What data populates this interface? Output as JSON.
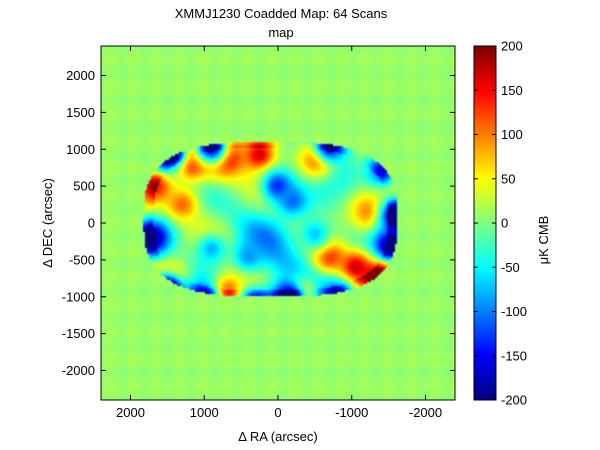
{
  "chart_data": {
    "type": "heatmap",
    "title": "XMMJ1230 Coadded Map: 64 Scans",
    "subtitle": "map",
    "xlabel": "Δ RA (arcsec)",
    "ylabel": "Δ DEC (arcsec)",
    "colorbar_label": "μK CMB",
    "colormap": "jet",
    "grid": false,
    "xlim": [
      2400,
      -2400
    ],
    "ylim": [
      -2400,
      2400
    ],
    "clim": [
      -200,
      200
    ],
    "xticks": [
      {
        "value": 2000,
        "label": "2000"
      },
      {
        "value": 1000,
        "label": "1000"
      },
      {
        "value": 0,
        "label": "0"
      },
      {
        "value": -1000,
        "label": "-1000"
      },
      {
        "value": -2000,
        "label": "-2000"
      }
    ],
    "yticks": [
      {
        "value": 2000,
        "label": "2000"
      },
      {
        "value": 1500,
        "label": "1500"
      },
      {
        "value": 1000,
        "label": "1000"
      },
      {
        "value": 500,
        "label": "500"
      },
      {
        "value": 0,
        "label": "0"
      },
      {
        "value": -500,
        "label": "-500"
      },
      {
        "value": -1000,
        "label": "-1000"
      },
      {
        "value": -1500,
        "label": "-1500"
      },
      {
        "value": -2000,
        "label": "-2000"
      }
    ],
    "colorbar_ticks": [
      {
        "value": 200,
        "label": "200"
      },
      {
        "value": 150,
        "label": "150"
      },
      {
        "value": 100,
        "label": "100"
      },
      {
        "value": 50,
        "label": "50"
      },
      {
        "value": 0,
        "label": "0"
      },
      {
        "value": -50,
        "label": "-50"
      },
      {
        "value": -100,
        "label": "-100"
      },
      {
        "value": -150,
        "label": "-150"
      },
      {
        "value": -200,
        "label": "-200"
      }
    ],
    "background_value": 10,
    "mapped_region": {
      "shape": "rounded-rectangle",
      "center": [
        100,
        50
      ],
      "half_width": 1720,
      "half_height": 1050,
      "inner_value_range": [
        -60,
        60
      ]
    },
    "features": [
      {
        "ra": 1200,
        "dec": 850,
        "value": 200
      },
      {
        "ra": 700,
        "dec": 900,
        "value": 190
      },
      {
        "ra": 250,
        "dec": 920,
        "value": 170
      },
      {
        "ra": -550,
        "dec": 880,
        "value": 160
      },
      {
        "ra": 1650,
        "dec": 500,
        "value": 150
      },
      {
        "ra": -1350,
        "dec": -700,
        "value": 200
      },
      {
        "ra": -1050,
        "dec": -600,
        "value": 180
      },
      {
        "ra": -700,
        "dec": -450,
        "value": 140
      },
      {
        "ra": -300,
        "dec": -950,
        "value": 120
      },
      {
        "ra": 1450,
        "dec": -750,
        "value": 110
      },
      {
        "ra": 700,
        "dec": -950,
        "value": 150
      },
      {
        "ra": -1250,
        "dec": 150,
        "value": 110
      },
      {
        "ra": 1300,
        "dec": 250,
        "value": 110
      },
      {
        "ra": 0,
        "dec": 500,
        "value": -140
      },
      {
        "ra": -200,
        "dec": 300,
        "value": -110
      },
      {
        "ra": 400,
        "dec": -450,
        "value": -90
      },
      {
        "ra": 900,
        "dec": -350,
        "value": -80
      },
      {
        "ra": -500,
        "dec": -150,
        "value": -70
      },
      {
        "ra": 1700,
        "dec": -200,
        "value": -200
      },
      {
        "ra": 1500,
        "dec": -900,
        "value": -200
      },
      {
        "ra": 1000,
        "dec": -1050,
        "value": -170
      },
      {
        "ra": 300,
        "dec": -1100,
        "value": -150
      },
      {
        "ra": -150,
        "dec": -1000,
        "value": -200
      },
      {
        "ra": -800,
        "dec": -1000,
        "value": -150
      },
      {
        "ra": 1450,
        "dec": 950,
        "value": -200
      },
      {
        "ra": 900,
        "dec": 1020,
        "value": -170
      },
      {
        "ra": -700,
        "dec": 1020,
        "value": -150
      },
      {
        "ra": -1400,
        "dec": 700,
        "value": -120
      },
      {
        "ra": -1600,
        "dec": 100,
        "value": -200
      },
      {
        "ra": -1500,
        "dec": -300,
        "value": -190
      }
    ]
  }
}
